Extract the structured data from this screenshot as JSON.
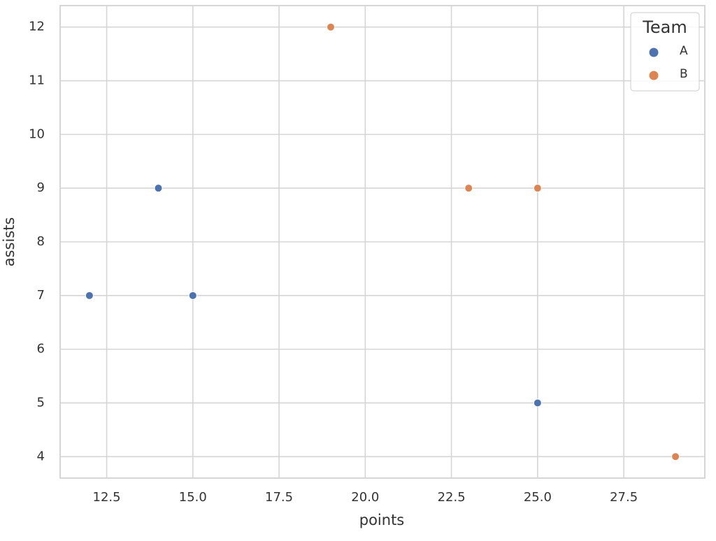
{
  "chart_data": {
    "type": "scatter",
    "xlabel": "points",
    "ylabel": "assists",
    "series": [
      {
        "name": "A",
        "color": "#4c72b0",
        "x": [
          12,
          14,
          15,
          25
        ],
        "values": [
          7,
          9,
          7,
          5
        ]
      },
      {
        "name": "B",
        "color": "#dd8452",
        "x": [
          19,
          23,
          25,
          29
        ],
        "values": [
          12,
          9,
          9,
          4
        ]
      }
    ],
    "xlim": [
      11.15,
      29.85
    ],
    "ylim": [
      3.6,
      12.4
    ],
    "xticks": [
      12.5,
      {
        "value": 15,
        "label": "15.0"
      },
      17.5,
      {
        "value": 20,
        "label": "20.0"
      },
      22.5,
      {
        "value": 25,
        "label": "25.0"
      },
      27.5
    ],
    "yticks": [
      4,
      5,
      6,
      7,
      8,
      9,
      10,
      11,
      12
    ],
    "grid": true,
    "legend_title": "Team",
    "legend_position": "upper right"
  }
}
